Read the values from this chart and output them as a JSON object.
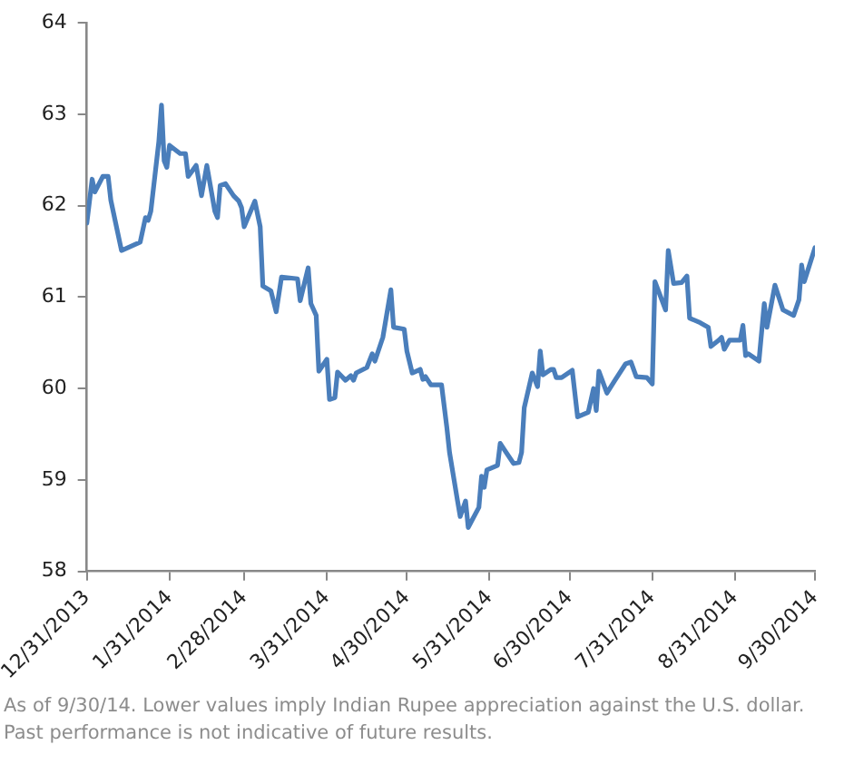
{
  "chart_data": {
    "type": "line",
    "x": [
      "2013-12-31",
      "2014-01-02",
      "2014-01-03",
      "2014-01-06",
      "2014-01-08",
      "2014-01-09",
      "2014-01-13",
      "2014-01-20",
      "2014-01-22",
      "2014-01-23",
      "2014-01-24",
      "2014-01-27",
      "2014-01-28",
      "2014-01-29",
      "2014-01-30",
      "2014-01-31",
      "2014-02-04",
      "2014-02-06",
      "2014-02-07",
      "2014-02-10",
      "2014-02-12",
      "2014-02-14",
      "2014-02-17",
      "2014-02-18",
      "2014-02-19",
      "2014-02-21",
      "2014-02-24",
      "2014-02-26",
      "2014-02-27",
      "2014-02-28",
      "2014-03-04",
      "2014-03-06",
      "2014-03-07",
      "2014-03-10",
      "2014-03-12",
      "2014-03-14",
      "2014-03-20",
      "2014-03-21",
      "2014-03-24",
      "2014-03-25",
      "2014-03-27",
      "2014-03-28",
      "2014-03-31",
      "2014-04-01",
      "2014-04-03",
      "2014-04-04",
      "2014-04-07",
      "2014-04-09",
      "2014-04-10",
      "2014-04-11",
      "2014-04-15",
      "2014-04-17",
      "2014-04-18",
      "2014-04-21",
      "2014-04-24",
      "2014-04-25",
      "2014-04-29",
      "2014-04-30",
      "2014-05-02",
      "2014-05-05",
      "2014-05-06",
      "2014-05-07",
      "2014-05-09",
      "2014-05-13",
      "2014-05-15",
      "2014-05-16",
      "2014-05-19",
      "2014-05-20",
      "2014-05-22",
      "2014-05-23",
      "2014-05-27",
      "2014-05-28",
      "2014-05-29",
      "2014-05-30",
      "2014-06-03",
      "2014-06-04",
      "2014-06-06",
      "2014-06-09",
      "2014-06-11",
      "2014-06-12",
      "2014-06-13",
      "2014-06-16",
      "2014-06-18",
      "2014-06-19",
      "2014-06-20",
      "2014-06-23",
      "2014-06-24",
      "2014-06-25",
      "2014-06-27",
      "2014-07-01",
      "2014-07-03",
      "2014-07-07",
      "2014-07-09",
      "2014-07-10",
      "2014-07-11",
      "2014-07-14",
      "2014-07-17",
      "2014-07-21",
      "2014-07-23",
      "2014-07-25",
      "2014-07-29",
      "2014-07-31",
      "2014-08-01",
      "2014-08-05",
      "2014-08-06",
      "2014-08-08",
      "2014-08-11",
      "2014-08-13",
      "2014-08-14",
      "2014-08-18",
      "2014-08-21",
      "2014-08-22",
      "2014-08-25",
      "2014-08-26",
      "2014-08-27",
      "2014-08-29",
      "2014-09-02",
      "2014-09-03",
      "2014-09-04",
      "2014-09-05",
      "2014-09-09",
      "2014-09-11",
      "2014-09-12",
      "2014-09-15",
      "2014-09-18",
      "2014-09-22",
      "2014-09-24",
      "2014-09-25",
      "2014-09-26",
      "2014-09-30"
    ],
    "series": [
      {
        "color": "#4a7ebb",
        "values": [
          61.81,
          62.29,
          62.15,
          62.32,
          62.32,
          62.06,
          61.51,
          61.6,
          61.87,
          61.84,
          61.94,
          62.7,
          63.1,
          62.49,
          62.42,
          62.66,
          62.57,
          62.57,
          62.32,
          62.44,
          62.11,
          62.44,
          61.94,
          61.87,
          62.22,
          62.24,
          62.11,
          62.05,
          61.98,
          61.77,
          62.05,
          61.77,
          61.12,
          61.07,
          60.84,
          61.22,
          61.2,
          60.96,
          61.32,
          60.93,
          60.8,
          60.19,
          60.32,
          59.88,
          59.9,
          60.18,
          60.09,
          60.14,
          60.09,
          60.17,
          60.23,
          60.38,
          60.3,
          60.56,
          61.08,
          60.67,
          60.65,
          60.41,
          60.17,
          60.21,
          60.1,
          60.13,
          60.04,
          60.04,
          59.57,
          59.3,
          58.77,
          58.6,
          58.77,
          58.48,
          58.7,
          59.04,
          58.92,
          59.11,
          59.16,
          59.4,
          59.31,
          59.18,
          59.19,
          59.3,
          59.79,
          60.17,
          60.02,
          60.41,
          60.15,
          60.21,
          60.21,
          60.12,
          60.12,
          60.2,
          59.69,
          59.74,
          60.0,
          59.76,
          60.19,
          59.95,
          60.09,
          60.27,
          60.29,
          60.13,
          60.12,
          60.05,
          61.17,
          60.86,
          61.51,
          61.15,
          61.16,
          61.23,
          60.77,
          60.72,
          60.67,
          60.46,
          60.53,
          60.56,
          60.43,
          60.53,
          60.53,
          60.69,
          60.36,
          60.38,
          60.3,
          60.93,
          60.67,
          61.13,
          60.86,
          60.8,
          60.97,
          61.35,
          61.17,
          61.54
        ]
      }
    ],
    "xlim": [
      "2013-12-31",
      "2014-09-30"
    ],
    "xticks": [
      {
        "value": "2013-12-31",
        "label": "12/31/2013"
      },
      {
        "value": "2014-01-31",
        "label": "1/31/2014"
      },
      {
        "value": "2014-02-28",
        "label": "2/28/2014"
      },
      {
        "value": "2014-03-31",
        "label": "3/31/2014"
      },
      {
        "value": "2014-04-30",
        "label": "4/30/2014"
      },
      {
        "value": "2014-05-31",
        "label": "5/31/2014"
      },
      {
        "value": "2014-06-30",
        "label": "6/30/2014"
      },
      {
        "value": "2014-07-31",
        "label": "7/31/2014"
      },
      {
        "value": "2014-08-31",
        "label": "8/31/2014"
      },
      {
        "value": "2014-09-30",
        "label": "9/30/2014"
      }
    ],
    "ylim": [
      58,
      64
    ],
    "yticks": [
      58,
      59,
      60,
      61,
      62,
      63,
      64
    ],
    "grid": false,
    "legend": false,
    "marker": "none",
    "line_style": "solid",
    "annotations": [
      "As of 9/30/14. Lower values imply Indian Rupee appreciation against the U.S. dollar. Past performance is not indicative of future results."
    ]
  }
}
